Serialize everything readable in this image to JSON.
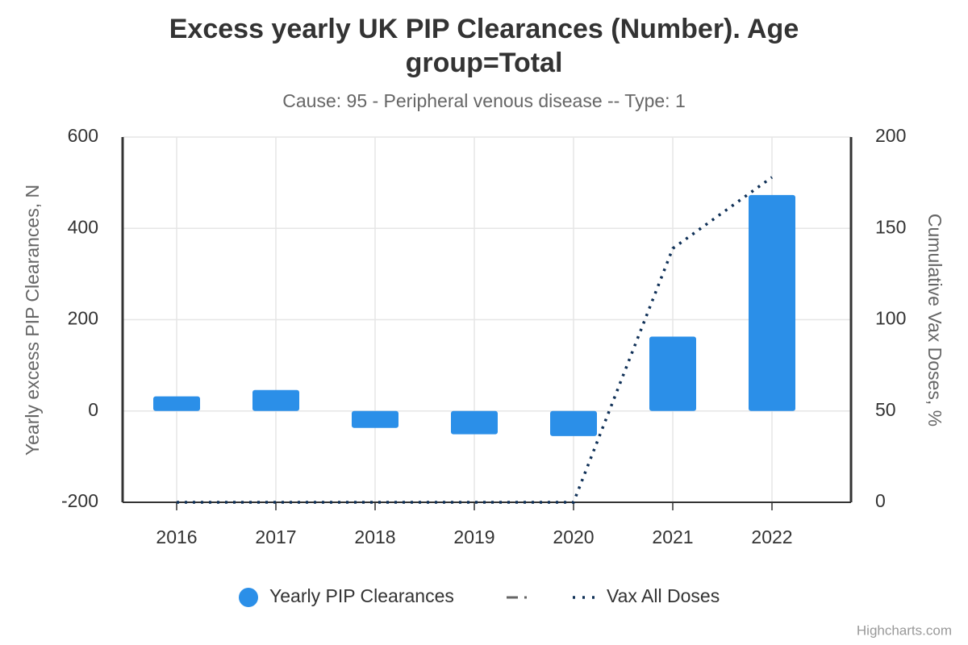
{
  "chart_data": {
    "type": "bar",
    "title": "Excess yearly UK PIP Clearances (Number). Age group=Total",
    "subtitle": "Cause: 95 - Peripheral venous disease -- Type: 1",
    "y_axis_label": "Yearly excess PIP Clearances, N",
    "y2_axis_label": "Cumulative Vax Doses, %",
    "categories": [
      "2016",
      "2017",
      "2018",
      "2019",
      "2020",
      "2021",
      "2022"
    ],
    "series": [
      {
        "name": "Yearly PIP Clearances",
        "type": "bar",
        "color": "#2b8fe8",
        "values": [
          32,
          46,
          -37,
          -51,
          -55,
          163,
          473
        ]
      },
      {
        "name": "Vax All Doses",
        "type": "line",
        "axis": "y2",
        "color": "#0f3057",
        "values": [
          0,
          0,
          0,
          0,
          0,
          139,
          178
        ]
      }
    ],
    "ylim": [
      -200,
      600
    ],
    "yticks": [
      -200,
      0,
      200,
      400,
      600
    ],
    "y2lim": [
      0,
      200
    ],
    "y2ticks": [
      0,
      50,
      100,
      150,
      200
    ],
    "grid": true,
    "credits": "Highcharts.com"
  }
}
